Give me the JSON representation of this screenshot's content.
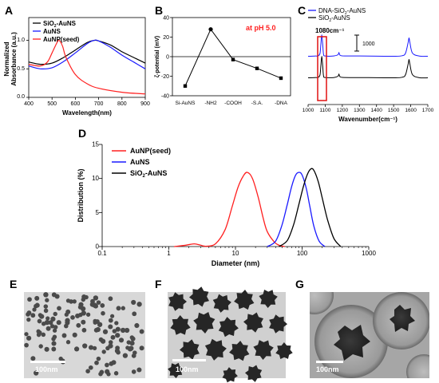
{
  "panels": {
    "A": {
      "letter": "A",
      "xlabel": "Wavelength(nm)",
      "ylabel_line1": "Normalized",
      "ylabel_line2": "Absorbance (a.u.)",
      "xticks": [
        "400",
        "500",
        "600",
        "700",
        "800",
        "900"
      ],
      "yticks": [
        "0.0",
        "0.5",
        "1.0"
      ],
      "legend": [
        {
          "label_main": "SiO",
          "label_sub": "2",
          "label_tail": "-AuNS",
          "color": "#000000"
        },
        {
          "label_main": "AuNS",
          "label_sub": "",
          "label_tail": "",
          "color": "#1a1aff"
        },
        {
          "label_main": "AuNP(seed)",
          "label_sub": "",
          "label_tail": "",
          "color": "#ff2020"
        }
      ]
    },
    "B": {
      "letter": "B",
      "ylabel": "ζ-potential (mV)",
      "annotation": "at pH 5.0",
      "annotation_color": "#ff2020",
      "yticks": [
        "-40",
        "-20",
        "0",
        "20",
        "40"
      ],
      "categories": [
        "Si-AuNS",
        "-NH2",
        "-COOH",
        "-S.A.",
        "-DNA"
      ]
    },
    "C": {
      "letter": "C",
      "xlabel": "Wavenumber(cm⁻¹)",
      "xticks": [
        "1000",
        "1100",
        "1200",
        "1300",
        "1400",
        "1500",
        "1600",
        "1700"
      ],
      "peak_label": "1080cm⁻¹",
      "scale_label": "1000",
      "legend": [
        {
          "label_main": "DNA-SiO",
          "label_sub": "2",
          "label_tail": "-AuNS",
          "color": "#1a1aff"
        },
        {
          "label_main": "SiO",
          "label_sub": "2",
          "label_tail": "-AuNS",
          "color": "#000000"
        }
      ]
    },
    "D": {
      "letter": "D",
      "xlabel": "Diameter (nm)",
      "ylabel": "Distribution (%)",
      "xticks": [
        "0.1",
        "1",
        "10",
        "100",
        "1000"
      ],
      "yticks": [
        "0",
        "5",
        "10",
        "15"
      ],
      "legend": [
        {
          "label_main": "AuNP(seed)",
          "label_sub": "",
          "label_tail": "",
          "color": "#ff2020"
        },
        {
          "label_main": "AuNS",
          "label_sub": "",
          "label_tail": "",
          "color": "#1a1aff"
        },
        {
          "label_main": "SiO",
          "label_sub": "2",
          "label_tail": "-AuNS",
          "color": "#000000"
        }
      ]
    },
    "E": {
      "letter": "E",
      "scale_bar": "100nm"
    },
    "F": {
      "letter": "F",
      "scale_bar": "100nm"
    },
    "G": {
      "letter": "G",
      "scale_bar": "100nm"
    }
  },
  "chart_data": [
    {
      "panel": "A",
      "type": "line",
      "xlabel": "Wavelength(nm)",
      "ylabel": "Normalized Absorbance (a.u.)",
      "xlim": [
        400,
        900
      ],
      "ylim": [
        0,
        1.4
      ],
      "series": [
        {
          "name": "SiO2-AuNS",
          "color": "#000000",
          "x": [
            400,
            450,
            500,
            550,
            600,
            650,
            680,
            700,
            750,
            800,
            850,
            900
          ],
          "y": [
            0.62,
            0.58,
            0.6,
            0.7,
            0.83,
            0.96,
            1.0,
            0.99,
            0.92,
            0.8,
            0.7,
            0.6
          ]
        },
        {
          "name": "AuNS",
          "color": "#1a1aff",
          "x": [
            400,
            450,
            500,
            550,
            600,
            650,
            680,
            700,
            750,
            800,
            850,
            900
          ],
          "y": [
            0.55,
            0.5,
            0.52,
            0.63,
            0.78,
            0.94,
            1.0,
            0.99,
            0.88,
            0.74,
            0.62,
            0.5
          ]
        },
        {
          "name": "AuNP(seed)",
          "color": "#ff2020",
          "x": [
            400,
            450,
            480,
            500,
            520,
            530,
            545,
            560,
            600,
            650,
            700,
            800,
            900
          ],
          "y": [
            0.58,
            0.55,
            0.62,
            0.78,
            0.95,
            1.0,
            0.9,
            0.7,
            0.4,
            0.24,
            0.16,
            0.09,
            0.06
          ]
        }
      ]
    },
    {
      "panel": "B",
      "type": "line",
      "ylabel": "ζ-potential (mV)",
      "ylim": [
        -40,
        40
      ],
      "categories": [
        "Si-AuNS",
        "-NH2",
        "-COOH",
        "-S.A.",
        "-DNA"
      ],
      "values": [
        -30,
        28,
        -3,
        -12,
        -22
      ]
    },
    {
      "panel": "C",
      "type": "line",
      "xlabel": "Wavenumber(cm⁻¹)",
      "xlim": [
        1000,
        1700
      ],
      "series": [
        {
          "name": "DNA-SiO2-AuNS",
          "color": "#1a1aff",
          "x": [
            1000,
            1040,
            1060,
            1070,
            1075,
            1080,
            1085,
            1090,
            1100,
            1150,
            1175,
            1180,
            1185,
            1200,
            1300,
            1400,
            1500,
            1550,
            1570,
            1585,
            1590,
            1595,
            1610,
            1650,
            1700
          ],
          "y": [
            1000,
            1020,
            1050,
            1300,
            2200,
            3000,
            2200,
            1200,
            1030,
            1030,
            1150,
            1350,
            1150,
            1040,
            1030,
            1010,
            1000,
            1050,
            1300,
            2300,
            2700,
            2300,
            1300,
            1020,
            1000
          ]
        },
        {
          "name": "SiO2-AuNS",
          "color": "#000000",
          "x": [
            1000,
            1040,
            1060,
            1070,
            1075,
            1080,
            1085,
            1090,
            1100,
            1150,
            1175,
            1180,
            1185,
            1200,
            1300,
            1400,
            1500,
            1550,
            1570,
            1585,
            1590,
            1595,
            1610,
            1650,
            1700
          ],
          "y": [
            -1000,
            -980,
            -950,
            -700,
            200,
            1000,
            200,
            -800,
            -970,
            -980,
            -850,
            -650,
            -850,
            -960,
            -980,
            -990,
            -1000,
            -950,
            -700,
            300,
            700,
            300,
            -700,
            -990,
            -1000
          ]
        }
      ]
    },
    {
      "panel": "D",
      "type": "line",
      "xlabel": "Diameter (nm)",
      "ylabel": "Distribution (%)",
      "xscale": "log",
      "xlim": [
        0.1,
        1000
      ],
      "ylim": [
        0,
        15
      ],
      "series": [
        {
          "name": "AuNP(seed)",
          "color": "#ff2020",
          "x": [
            1.2,
            1.8,
            2.4,
            3.0,
            3.6,
            5,
            7,
            9,
            11,
            13,
            15,
            18,
            22,
            26,
            30,
            38,
            45,
            55
          ],
          "y": [
            0,
            0.2,
            0.4,
            0.2,
            0.05,
            0.4,
            2.5,
            6.0,
            8.8,
            10.3,
            10.9,
            10.0,
            7.2,
            4.2,
            2.2,
            0.7,
            0.2,
            0
          ]
        },
        {
          "name": "AuNS",
          "color": "#1a1aff",
          "x": [
            30,
            40,
            50,
            60,
            70,
            80,
            90,
            100,
            115,
            130,
            150,
            180,
            220
          ],
          "y": [
            0,
            0.8,
            3.2,
            6.2,
            8.9,
            10.5,
            10.9,
            10.5,
            8.6,
            6.0,
            3.0,
            0.8,
            0
          ]
        },
        {
          "name": "SiO2-AuNS",
          "color": "#000000",
          "x": [
            45,
            60,
            75,
            90,
            105,
            120,
            135,
            150,
            175,
            200,
            240,
            300,
            380
          ],
          "y": [
            0,
            0.9,
            3.3,
            6.3,
            8.9,
            10.6,
            11.4,
            11.2,
            9.5,
            7.2,
            4.0,
            1.2,
            0
          ]
        }
      ]
    }
  ]
}
